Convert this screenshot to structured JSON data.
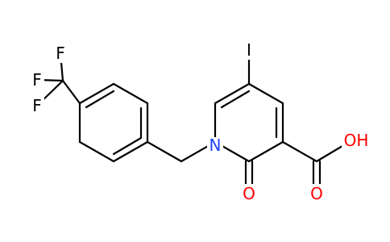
{
  "atoms": [
    "I",
    "N",
    "O",
    "O",
    "OH",
    "F",
    "F",
    "F"
  ]
}
